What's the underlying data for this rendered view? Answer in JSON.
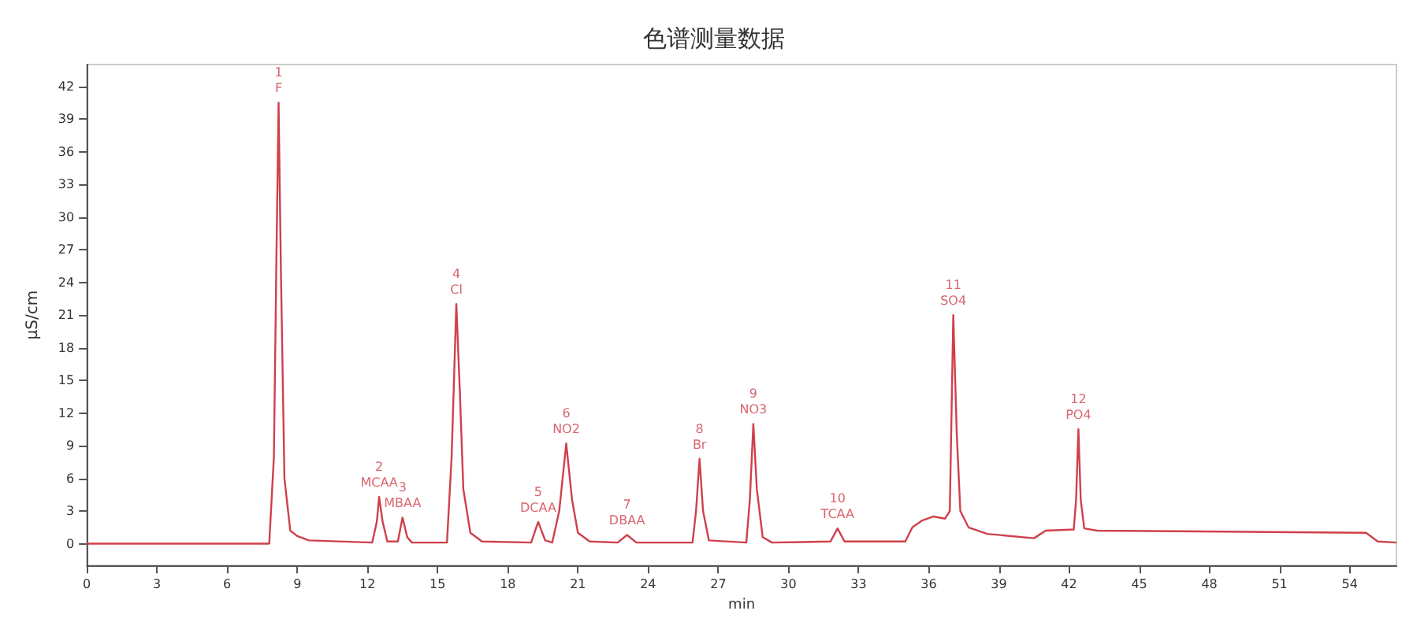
{
  "chart_data": {
    "type": "line",
    "title": "色谱测量数据",
    "xlabel": "min",
    "ylabel": "µS/cm",
    "xlim": [
      0,
      56
    ],
    "ylim": [
      -2,
      44
    ],
    "xticks": [
      0,
      3,
      6,
      9,
      12,
      15,
      18,
      21,
      24,
      27,
      30,
      33,
      36,
      39,
      42,
      45,
      48,
      51,
      54
    ],
    "yticks": [
      0,
      3,
      6,
      9,
      12,
      15,
      18,
      21,
      24,
      27,
      30,
      33,
      36,
      39,
      42
    ],
    "grid": false,
    "marker": "none",
    "line_style": "solid",
    "series": [
      {
        "color": "#d0404a",
        "x": [
          0,
          7.8,
          8.0,
          8.1,
          8.2,
          8.3,
          8.45,
          8.7,
          9,
          9.5,
          12.2,
          12.4,
          12.5,
          12.65,
          12.85,
          13.3,
          13.5,
          13.7,
          13.9,
          15.4,
          15.6,
          15.8,
          15.95,
          16.1,
          16.4,
          16.9,
          19.0,
          19.3,
          19.6,
          19.9,
          20.2,
          20.5,
          20.75,
          21.0,
          21.5,
          22.7,
          23.1,
          23.5,
          25.9,
          26.05,
          26.2,
          26.35,
          26.6,
          28.2,
          28.35,
          28.5,
          28.65,
          28.9,
          29.3,
          31.8,
          32.1,
          32.4,
          35,
          35.3,
          35.7,
          36.2,
          36.7,
          36.9,
          37.05,
          37.2,
          37.35,
          37.7,
          38.5,
          40.5,
          41,
          42.2,
          42.3,
          42.4,
          42.5,
          42.65,
          43.2,
          54.7,
          55.2,
          56
        ],
        "values": [
          0,
          0,
          8,
          25,
          40.5,
          25,
          6,
          1.2,
          0.7,
          0.3,
          0.1,
          2,
          4.3,
          2,
          0.2,
          0.2,
          2.4,
          0.6,
          0.1,
          0.1,
          8,
          22,
          14,
          5,
          1,
          0.2,
          0.1,
          2.0,
          0.3,
          0.1,
          3,
          9.2,
          4,
          1,
          0.2,
          0.1,
          0.8,
          0.1,
          0.1,
          3,
          7.8,
          3,
          0.3,
          0.1,
          4,
          11,
          5,
          0.6,
          0.1,
          0.2,
          1.4,
          0.2,
          0.2,
          1.5,
          2.1,
          2.5,
          2.3,
          3,
          21,
          10,
          3,
          1.5,
          0.9,
          0.5,
          1.2,
          1.3,
          4,
          10.5,
          4,
          1.4,
          1.2,
          1.0,
          0.2,
          0.1
        ]
      }
    ],
    "annotations": [
      {
        "text": "1\nF",
        "x": 8.2,
        "y": 40.5
      },
      {
        "text": "2\nMCAA",
        "x": 12.5,
        "y": 4.3
      },
      {
        "text": "3\nMBAA",
        "x": 13.5,
        "y": 2.4
      },
      {
        "text": "4\nCl",
        "x": 15.8,
        "y": 22
      },
      {
        "text": "5\nDCAA",
        "x": 19.3,
        "y": 2.0
      },
      {
        "text": "6\nNO2",
        "x": 20.5,
        "y": 9.2
      },
      {
        "text": "7\nDBAA",
        "x": 23.1,
        "y": 0.8
      },
      {
        "text": "8\nBr",
        "x": 26.2,
        "y": 7.8
      },
      {
        "text": "9\nNO3",
        "x": 28.5,
        "y": 11
      },
      {
        "text": "10\nTCAA",
        "x": 32.1,
        "y": 1.4
      },
      {
        "text": "11\nSO4",
        "x": 37.05,
        "y": 21
      },
      {
        "text": "12\nPO4",
        "x": 42.4,
        "y": 10.5
      }
    ]
  }
}
